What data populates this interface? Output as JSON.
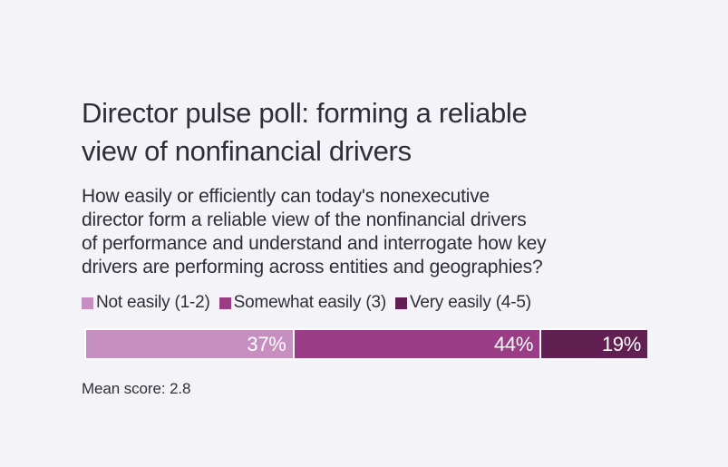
{
  "page": {
    "background_color": "#f4f4f8",
    "text_color": "#2e2e38"
  },
  "header": {
    "title": "Director pulse poll: forming a reliable view of nonfinancial drivers",
    "title_lines": [
      "Director pulse poll: forming a reliable",
      "view of nonfinancial drivers"
    ],
    "question": "How easily or efficiently can today's nonexecutive director form a reliable view of the nonfinancial drivers of performance and understand and interrogate how key drivers are performing across entities and geographies?",
    "question_lines": [
      "How easily or efficiently can today's nonexecutive",
      "director form a reliable view of the nonfinancial drivers",
      "of performance and understand and interrogate how key",
      "drivers are performing across entities and geographies?"
    ]
  },
  "chart_data": {
    "type": "bar",
    "subtype": "horizontal-stacked-single-row",
    "title": "Director pulse poll: forming a reliable view of nonfinancial drivers",
    "categories": [
      "Not easily (1-2)",
      "Somewhat easily (3)",
      "Very easily (4-5)"
    ],
    "values": [
      37,
      44,
      19
    ],
    "value_labels": [
      "37%",
      "44%",
      "19%"
    ],
    "colors": [
      "#c78fc0",
      "#9a3d86",
      "#622052"
    ],
    "xlim": [
      0,
      100
    ],
    "grid": false,
    "legend_position": "top",
    "value_label_color": "#ffffff",
    "annotation": "Mean score: 2.8",
    "mean_score": 2.8
  },
  "footer": {
    "mean_score_text": "Mean score: 2.8"
  }
}
